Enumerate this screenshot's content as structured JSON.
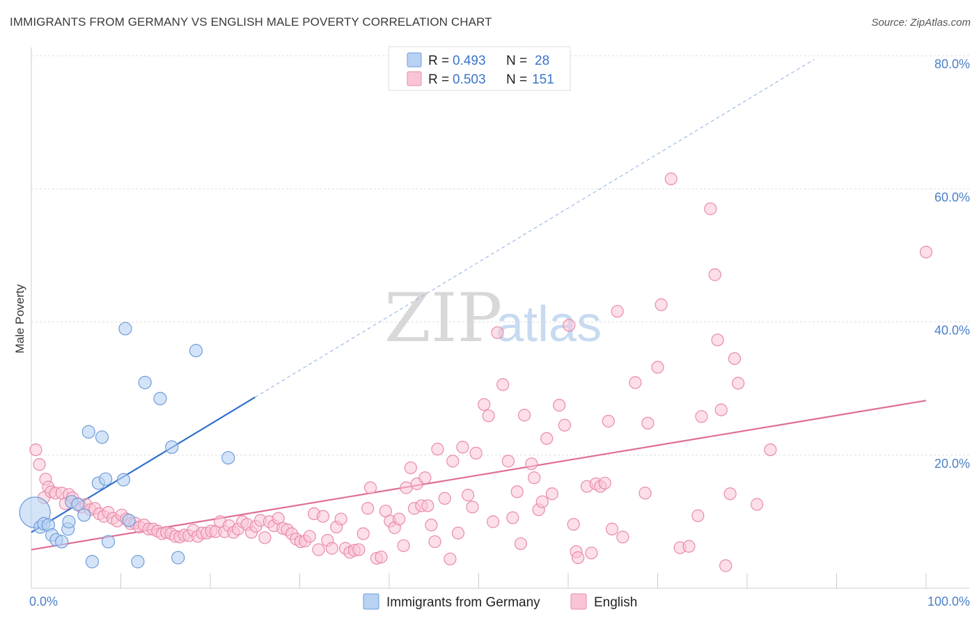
{
  "title": "IMMIGRANTS FROM GERMANY VS ENGLISH MALE POVERTY CORRELATION CHART",
  "source": "Source: ZipAtlas.com",
  "watermark": {
    "zip": "ZIP",
    "atlas": "atlas"
  },
  "colors": {
    "germany_fill": "#b8d2f3",
    "germany_stroke": "#6f9bd8",
    "germany_line": "#2e6fcc",
    "english_fill": "#f9c5d5",
    "english_stroke": "#e98aa9",
    "english_line": "#e06c96",
    "grid": "#dedede",
    "tick_label": "#4a7fc8"
  },
  "legend": {
    "rows": [
      {
        "r_label": "R =",
        "r_value": "0.493",
        "n_label": "N =",
        "n_value": "28"
      },
      {
        "r_label": "R =",
        "r_value": "0.503",
        "n_label": "N =",
        "n_value": "151"
      }
    ]
  },
  "bottom_legend": [
    "Immigrants from Germany",
    "English"
  ],
  "chart_data": {
    "type": "scatter",
    "xlabel": "",
    "ylabel": "Male Poverty",
    "xlim": [
      0,
      100
    ],
    "ylim": [
      0,
      80
    ],
    "x_tick_labels": [
      "0.0%",
      "100.0%"
    ],
    "y_ticks": [
      20,
      40,
      60,
      80
    ],
    "y_tick_labels": [
      "20.0%",
      "40.0%",
      "60.0%",
      "80.0%"
    ],
    "grid": true,
    "legend_placement": "top-center",
    "series": [
      {
        "name": "Immigrants from Germany",
        "r": 0.493,
        "n": 28,
        "trend": {
          "x0": 0,
          "y0": 8.4,
          "x1": 25,
          "y1": 28.7,
          "dashed_to_x": 87.5
        },
        "points": [
          [
            0.4,
            11.4,
            22
          ],
          [
            1.0,
            9.2,
            9
          ],
          [
            1.4,
            9.7,
            9
          ],
          [
            1.9,
            9.5,
            9
          ],
          [
            2.3,
            8.0,
            9
          ],
          [
            2.8,
            7.3,
            9
          ],
          [
            3.4,
            7.0,
            9
          ],
          [
            4.1,
            8.9,
            9
          ],
          [
            4.2,
            10.0,
            9
          ],
          [
            4.5,
            13.0,
            9
          ],
          [
            5.2,
            12.6,
            9
          ],
          [
            5.9,
            11.0,
            9
          ],
          [
            6.4,
            23.5,
            9
          ],
          [
            6.8,
            4.0,
            9
          ],
          [
            7.5,
            15.8,
            9
          ],
          [
            7.9,
            22.7,
            9
          ],
          [
            8.3,
            16.4,
            9
          ],
          [
            8.6,
            7.0,
            9
          ],
          [
            10.3,
            16.3,
            9
          ],
          [
            10.5,
            39.0,
            9
          ],
          [
            10.9,
            10.2,
            9
          ],
          [
            11.9,
            4.0,
            9
          ],
          [
            12.7,
            30.9,
            9
          ],
          [
            14.4,
            28.5,
            9
          ],
          [
            15.7,
            21.2,
            9
          ],
          [
            16.4,
            4.6,
            9
          ],
          [
            18.4,
            35.7,
            9
          ],
          [
            22.0,
            19.6,
            9
          ]
        ]
      },
      {
        "name": "English",
        "r": 0.503,
        "n": 151,
        "trend": {
          "x0": 0,
          "y0": 5.8,
          "x1": 100,
          "y1": 28.2
        },
        "points": [
          [
            0.5,
            20.8
          ],
          [
            0.9,
            18.6
          ],
          [
            1.4,
            13.6
          ],
          [
            1.6,
            16.4
          ],
          [
            1.9,
            15.2
          ],
          [
            2.2,
            14.5
          ],
          [
            2.7,
            14.3
          ],
          [
            3.4,
            14.3
          ],
          [
            3.8,
            12.7
          ],
          [
            4.2,
            14.1
          ],
          [
            4.6,
            13.6
          ],
          [
            5.2,
            12.7
          ],
          [
            5.6,
            12.2
          ],
          [
            6.1,
            12.6
          ],
          [
            6.6,
            11.8
          ],
          [
            7.1,
            12.0
          ],
          [
            7.6,
            11.2
          ],
          [
            8.1,
            10.8
          ],
          [
            8.6,
            11.4
          ],
          [
            9.1,
            10.5
          ],
          [
            9.6,
            10.1
          ],
          [
            10.1,
            11.0
          ],
          [
            10.6,
            10.4
          ],
          [
            11.1,
            9.7
          ],
          [
            11.6,
            9.8
          ],
          [
            12.1,
            9.2
          ],
          [
            12.6,
            9.5
          ],
          [
            13.1,
            8.9
          ],
          [
            13.6,
            8.9
          ],
          [
            14.1,
            8.6
          ],
          [
            14.6,
            8.2
          ],
          [
            15.1,
            8.4
          ],
          [
            15.6,
            8.2
          ],
          [
            16.1,
            7.8
          ],
          [
            16.6,
            7.7
          ],
          [
            17.1,
            8.0
          ],
          [
            17.6,
            7.9
          ],
          [
            18.1,
            8.7
          ],
          [
            18.6,
            7.8
          ],
          [
            19.1,
            8.3
          ],
          [
            19.6,
            8.3
          ],
          [
            20.1,
            8.6
          ],
          [
            20.6,
            8.5
          ],
          [
            21.1,
            10.0
          ],
          [
            21.6,
            8.5
          ],
          [
            22.1,
            9.4
          ],
          [
            22.6,
            8.4
          ],
          [
            23.1,
            8.9
          ],
          [
            23.6,
            10.0
          ],
          [
            24.1,
            9.6
          ],
          [
            24.6,
            8.4
          ],
          [
            25.1,
            9.3
          ],
          [
            25.6,
            10.2
          ],
          [
            26.1,
            7.6
          ],
          [
            26.6,
            10.0
          ],
          [
            27.1,
            9.4
          ],
          [
            27.6,
            10.5
          ],
          [
            28.1,
            9.0
          ],
          [
            28.6,
            8.8
          ],
          [
            29.1,
            8.2
          ],
          [
            29.6,
            7.4
          ],
          [
            30.1,
            7.0
          ],
          [
            30.6,
            7.1
          ],
          [
            31.1,
            7.8
          ],
          [
            31.6,
            11.2
          ],
          [
            32.1,
            5.8
          ],
          [
            32.6,
            10.8
          ],
          [
            33.1,
            7.2
          ],
          [
            33.6,
            6.0
          ],
          [
            34.1,
            9.2
          ],
          [
            34.6,
            10.4
          ],
          [
            35.1,
            6.0
          ],
          [
            35.6,
            5.4
          ],
          [
            36.1,
            5.7
          ],
          [
            36.6,
            5.8
          ],
          [
            37.1,
            8.2
          ],
          [
            37.6,
            12.0
          ],
          [
            37.9,
            15.1
          ],
          [
            38.6,
            4.5
          ],
          [
            39.1,
            4.7
          ],
          [
            39.6,
            11.6
          ],
          [
            40.1,
            10.1
          ],
          [
            40.6,
            9.1
          ],
          [
            41.1,
            10.4
          ],
          [
            41.6,
            6.4
          ],
          [
            41.9,
            15.1
          ],
          [
            42.4,
            18.1
          ],
          [
            42.8,
            12.0
          ],
          [
            43.1,
            15.7
          ],
          [
            43.6,
            12.4
          ],
          [
            44.0,
            16.6
          ],
          [
            44.3,
            12.4
          ],
          [
            44.7,
            9.5
          ],
          [
            45.1,
            7.0
          ],
          [
            45.4,
            20.9
          ],
          [
            46.2,
            13.5
          ],
          [
            46.8,
            4.4
          ],
          [
            47.1,
            19.1
          ],
          [
            47.7,
            8.3
          ],
          [
            48.2,
            21.2
          ],
          [
            48.8,
            14.0
          ],
          [
            49.3,
            12.2
          ],
          [
            49.7,
            20.3
          ],
          [
            50.6,
            27.6
          ],
          [
            51.1,
            25.9
          ],
          [
            51.6,
            10.0
          ],
          [
            52.1,
            38.4
          ],
          [
            52.7,
            30.6
          ],
          [
            53.3,
            19.1
          ],
          [
            53.8,
            10.6
          ],
          [
            54.3,
            14.5
          ],
          [
            54.7,
            6.7
          ],
          [
            55.1,
            26.0
          ],
          [
            55.9,
            18.7
          ],
          [
            56.2,
            16.6
          ],
          [
            56.7,
            11.8
          ],
          [
            57.1,
            13.0
          ],
          [
            57.6,
            22.5
          ],
          [
            58.2,
            14.2
          ],
          [
            59.0,
            27.5
          ],
          [
            59.6,
            24.5
          ],
          [
            60.1,
            39.5
          ],
          [
            60.6,
            9.6
          ],
          [
            60.9,
            5.5
          ],
          [
            61.1,
            4.6
          ],
          [
            62.1,
            15.3
          ],
          [
            62.6,
            5.3
          ],
          [
            63.1,
            15.7
          ],
          [
            63.6,
            15.3
          ],
          [
            64.1,
            15.8
          ],
          [
            64.5,
            25.1
          ],
          [
            64.9,
            8.9
          ],
          [
            65.5,
            41.6
          ],
          [
            66.1,
            7.7
          ],
          [
            67.5,
            30.9
          ],
          [
            68.6,
            14.3
          ],
          [
            68.9,
            24.8
          ],
          [
            70.0,
            33.2
          ],
          [
            70.4,
            42.6
          ],
          [
            71.5,
            61.5
          ],
          [
            72.5,
            6.1
          ],
          [
            73.5,
            6.3
          ],
          [
            74.5,
            10.9
          ],
          [
            74.9,
            25.8
          ],
          [
            75.9,
            57.0
          ],
          [
            76.4,
            47.1
          ],
          [
            76.7,
            37.3
          ],
          [
            77.1,
            26.8
          ],
          [
            77.6,
            3.4
          ],
          [
            78.1,
            14.2
          ],
          [
            78.6,
            34.5
          ],
          [
            79.0,
            30.8
          ],
          [
            81.1,
            12.6
          ],
          [
            82.6,
            20.8
          ],
          [
            100.0,
            50.5
          ]
        ]
      }
    ]
  }
}
